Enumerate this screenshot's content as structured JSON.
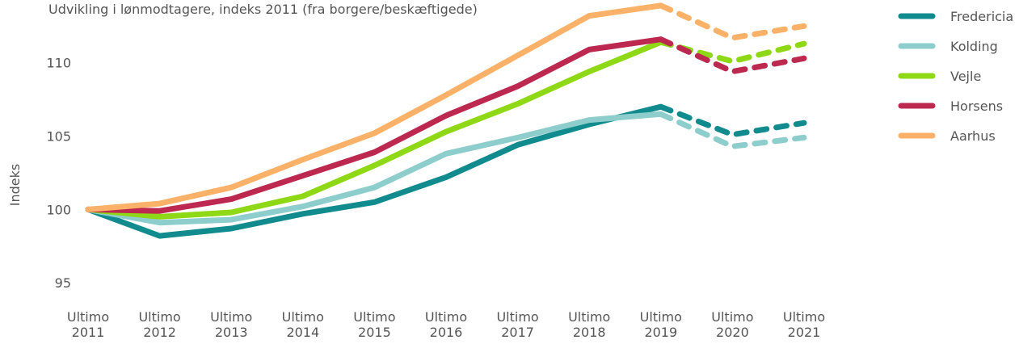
{
  "chart_data": {
    "type": "line",
    "subtitle_fragment": "Udvikling i lønmodtagere, indeks 2011 (fra borgere/beskæftigede)",
    "ylabel": "Indeks",
    "ylim": [
      93,
      114.5
    ],
    "yticks": [
      95,
      100,
      105,
      110
    ],
    "grid": false,
    "legend_position": "top-right",
    "categories": [
      [
        "Ultimo",
        "2011"
      ],
      [
        "Ultimo",
        "2012"
      ],
      [
        "Ultimo",
        "2013"
      ],
      [
        "Ultimo",
        "2014"
      ],
      [
        "Ultimo",
        "2015"
      ],
      [
        "Ultimo",
        "2016"
      ],
      [
        "Ultimo",
        "2017"
      ],
      [
        "Ultimo",
        "2018"
      ],
      [
        "Ultimo",
        "2019"
      ],
      [
        "Ultimo",
        "2020"
      ],
      [
        "Ultimo",
        "2021"
      ]
    ],
    "solid_until_index": 8,
    "line_style_after": "dashed",
    "series": [
      {
        "name": "Fredericia",
        "color": "#128B8E",
        "values": [
          100.0,
          98.2,
          98.7,
          99.7,
          100.5,
          102.2,
          104.4,
          105.8,
          107.0,
          105.1,
          105.9
        ]
      },
      {
        "name": "Kolding",
        "color": "#8DCECC",
        "values": [
          100.0,
          99.1,
          99.3,
          100.2,
          101.5,
          103.8,
          104.9,
          106.1,
          106.5,
          104.3,
          104.9
        ]
      },
      {
        "name": "Vejle",
        "color": "#8ED815",
        "values": [
          100.0,
          99.5,
          99.8,
          100.9,
          103.0,
          105.3,
          107.2,
          109.4,
          111.4,
          110.1,
          111.3
        ]
      },
      {
        "name": "Horsens",
        "color": "#BC284F",
        "values": [
          100.0,
          99.9,
          100.7,
          102.3,
          103.9,
          106.4,
          108.4,
          110.9,
          111.6,
          109.4,
          110.3
        ]
      },
      {
        "name": "Aarhus",
        "color": "#FBB167",
        "values": [
          100.0,
          100.4,
          101.5,
          103.4,
          105.2,
          107.8,
          110.5,
          113.2,
          113.9,
          111.7,
          112.5
        ]
      }
    ]
  }
}
